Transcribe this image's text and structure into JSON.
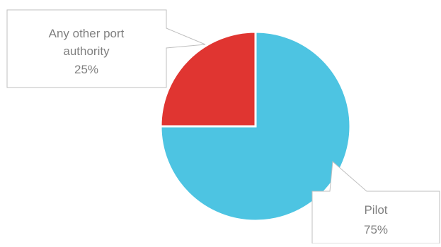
{
  "chart_data": {
    "type": "pie",
    "slices": [
      {
        "label": "Pilot",
        "value": 75,
        "value_text": "75%",
        "color": "#4DC4E2"
      },
      {
        "label": "Any other port authority",
        "value": 25,
        "value_text": "25%",
        "color": "#E03531"
      }
    ],
    "callouts": [
      {
        "lines": [
          "Any other port",
          "authority"
        ],
        "value_text": "25%"
      },
      {
        "lines": [
          "Pilot"
        ],
        "value_text": "75%"
      }
    ],
    "legend": "none",
    "grid": false
  }
}
